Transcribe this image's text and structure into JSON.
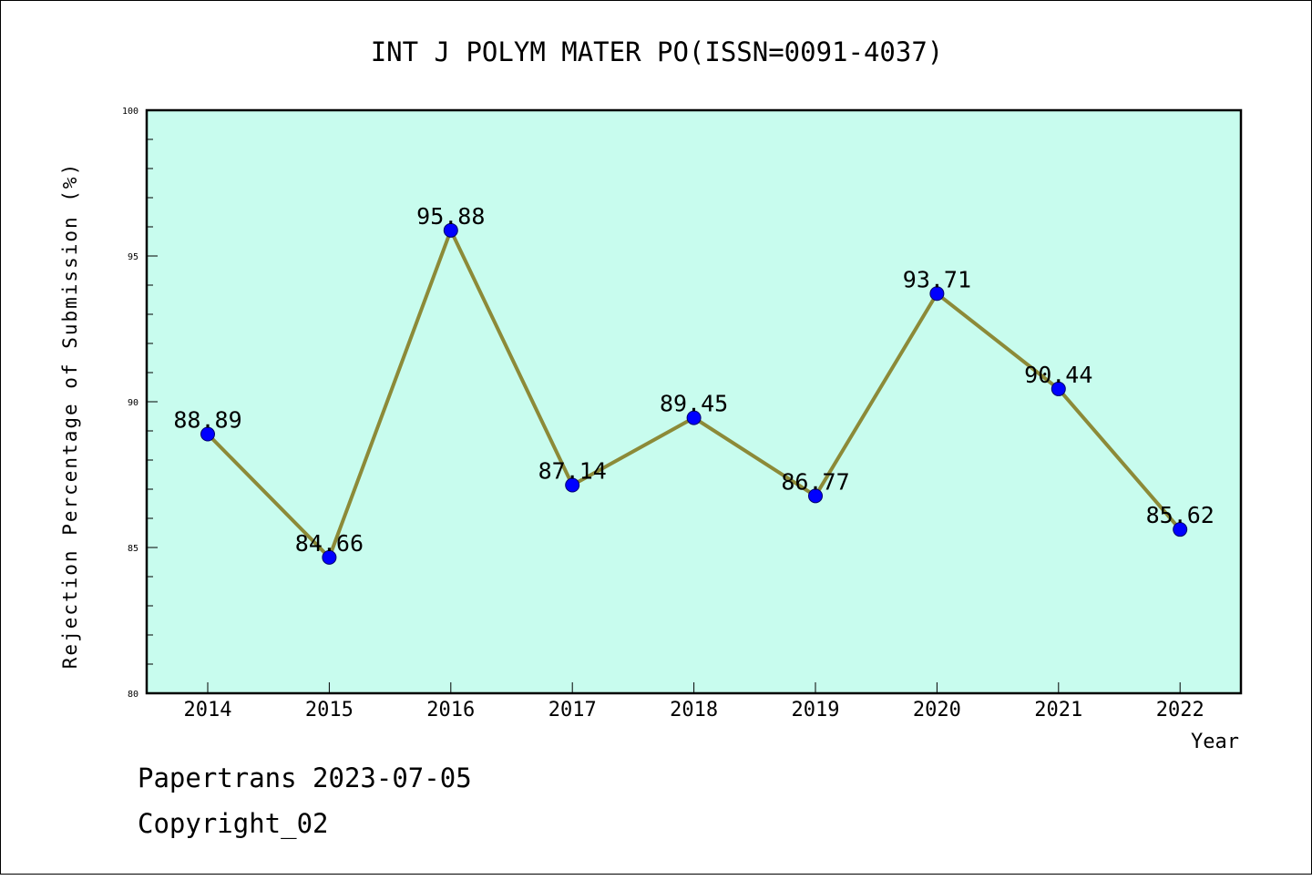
{
  "chart_data": {
    "type": "line",
    "title": "INT J POLYM MATER PO(ISSN=0091-4037)",
    "xlabel": "Year",
    "ylabel": "Rejection Percentage of Submission (%)",
    "categories": [
      "2014",
      "2015",
      "2016",
      "2017",
      "2018",
      "2019",
      "2020",
      "2021",
      "2022"
    ],
    "series": [
      {
        "values": [
          88.89,
          84.66,
          95.88,
          87.14,
          89.45,
          86.77,
          93.71,
          90.44,
          85.62
        ],
        "labels": [
          "88.89",
          "84.66",
          "95.88",
          "87.14",
          "89.45",
          "86.77",
          "93.71",
          "90.44",
          "85.62"
        ]
      }
    ],
    "ylim": [
      80,
      100
    ],
    "yticks": [
      "80",
      "85",
      "90",
      "95",
      "100"
    ],
    "grid": false,
    "colors": {
      "plot_background": "#c8fcee",
      "line": "#8c8a38",
      "marker": "#0000ff",
      "axis": "#000000"
    }
  },
  "footer": {
    "line1": "Papertrans 2023-07-05",
    "line2": "Copyright_02"
  }
}
